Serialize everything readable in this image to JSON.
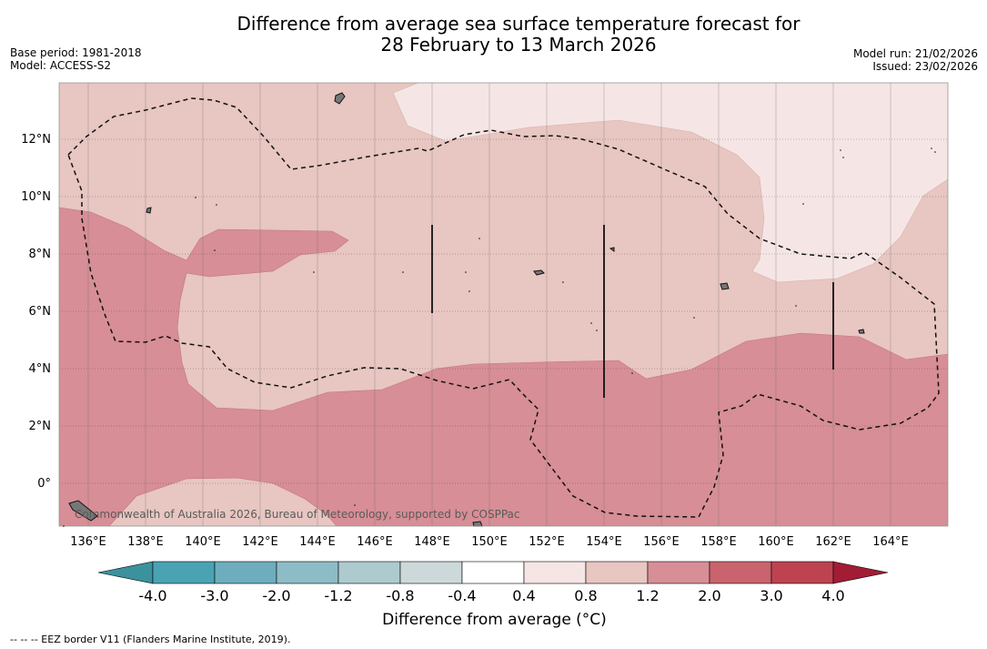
{
  "title": {
    "line1": "Difference from average sea surface temperature forecast for",
    "line2": "28 February to 13 March 2026"
  },
  "meta": {
    "base_period": "Base period: 1981-2018",
    "model": "Model: ACCESS-S2",
    "model_run": "Model run: 21/02/2026",
    "issued": "Issued: 23/02/2026"
  },
  "axes": {
    "y_ticks": [
      "12°N",
      "10°N",
      "8°N",
      "6°N",
      "4°N",
      "2°N",
      "0°"
    ],
    "x_ticks": [
      "136°E",
      "138°E",
      "140°E",
      "142°E",
      "144°E",
      "146°E",
      "148°E",
      "150°E",
      "152°E",
      "154°E",
      "156°E",
      "158°E",
      "160°E",
      "162°E",
      "164°E"
    ]
  },
  "credit": "Commonwealth of Australia 2026, Bureau of Meteorology, supported by COSPPac",
  "colorbar": {
    "labels": [
      "-4.0",
      "-3.0",
      "-2.0",
      "-1.2",
      "-0.8",
      "-0.4",
      "0.4",
      "0.8",
      "1.2",
      "2.0",
      "3.0",
      "4.0"
    ],
    "colors": [
      "#3b929d",
      "#4aa3b3",
      "#6eadbd",
      "#8ebcc6",
      "#adcace",
      "#ccd8d9",
      "#ffffff",
      "#f5e6e5",
      "#e8c6c1",
      "#d78e96",
      "#c9636e",
      "#bd4350",
      "#a21c35"
    ],
    "title": "Difference from average (°C)"
  },
  "footnote": "-- -- -- EEZ border V11 (Flanders Marine Institute, 2019)."
}
